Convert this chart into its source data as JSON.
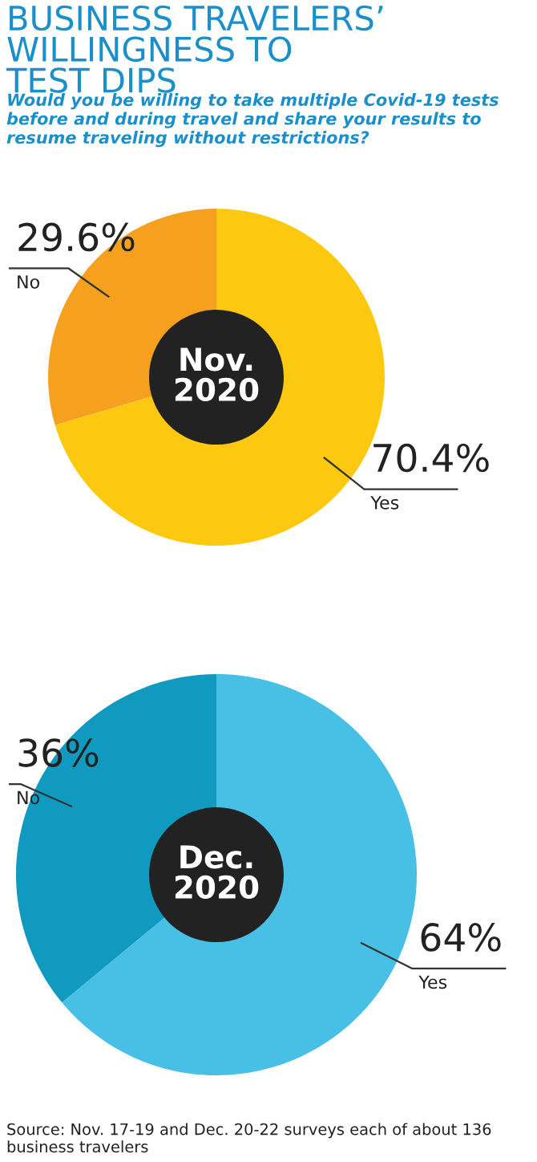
{
  "chart_data": [
    {
      "type": "donut",
      "title": "Nov.\n2020",
      "categories": [
        "Yes",
        "No"
      ],
      "values": [
        70.4,
        29.6
      ],
      "value_labels": [
        "70.4%",
        "29.6%"
      ],
      "colors": [
        "#fcc810",
        "#f5a01e"
      ],
      "annotations": [
        "BUSINESS TRAVELERS’\nWILLINGNESS TO\nTEST DIPS",
        "Would you be willing to take multiple Covid-19 tests before and during travel and share your results to resume traveling without restrictions?"
      ]
    },
    {
      "type": "donut",
      "title": "Dec.\n2020",
      "categories": [
        "Yes",
        "No"
      ],
      "values": [
        64,
        36
      ],
      "value_labels": [
        "64%",
        "36%"
      ],
      "colors": [
        "#48c0e6",
        "#119ac0"
      ],
      "annotations": [
        "Source: Nov. 17-19 and Dec. 20-22 surveys each of about 136 business travelers"
      ]
    }
  ]
}
